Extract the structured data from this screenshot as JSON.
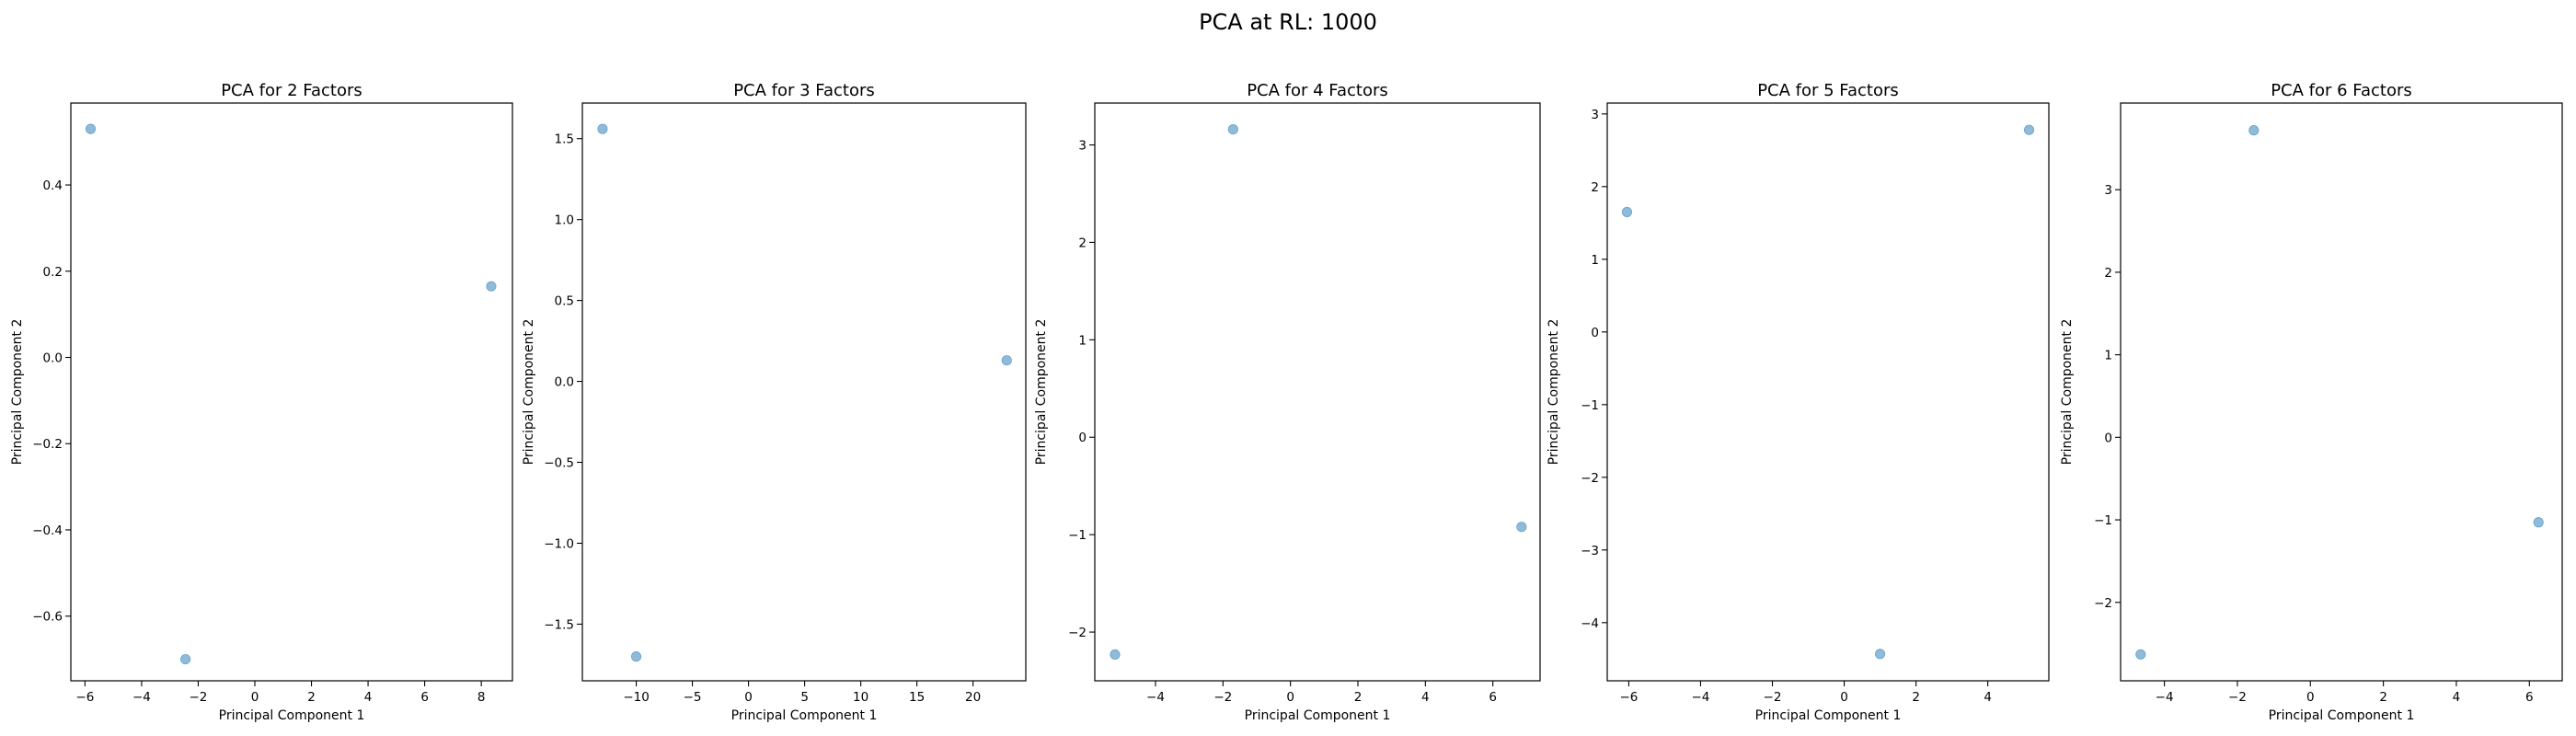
{
  "figure": {
    "title": "PCA at RL: 1000"
  },
  "colors": {
    "point_fill": "#1f77b4",
    "point_opacity": 0.5
  },
  "chart_data": [
    {
      "type": "scatter",
      "title": "PCA for 2 Factors",
      "xlabel": "Principal Component 1",
      "ylabel": "Principal Component 2",
      "xlim": [
        -6.5,
        9.1
      ],
      "ylim": [
        -0.75,
        0.59
      ],
      "xticks": [
        -6,
        -4,
        -2,
        0,
        2,
        4,
        6,
        8
      ],
      "yticks": [
        -0.6,
        -0.4,
        -0.2,
        0.0,
        0.2,
        0.4
      ],
      "ytick_labels": [
        "−0.6",
        "−0.4",
        "−0.2",
        "0.0",
        "0.2",
        "0.4"
      ],
      "xtick_labels": [
        "−6",
        "−4",
        "−2",
        "0",
        "2",
        "4",
        "6",
        "8"
      ],
      "points": [
        {
          "x": -5.8,
          "y": 0.53
        },
        {
          "x": -2.45,
          "y": -0.7
        },
        {
          "x": 8.35,
          "y": 0.165
        }
      ]
    },
    {
      "type": "scatter",
      "title": "PCA for 3 Factors",
      "xlabel": "Principal Component 1",
      "ylabel": "Principal Component 2",
      "xlim": [
        -14.8,
        24.7
      ],
      "ylim": [
        -1.85,
        1.72
      ],
      "xticks": [
        -10,
        -5,
        0,
        5,
        10,
        15,
        20
      ],
      "yticks": [
        -1.5,
        -1.0,
        -0.5,
        0.0,
        0.5,
        1.0,
        1.5
      ],
      "xtick_labels": [
        "−10",
        "−5",
        "0",
        "5",
        "10",
        "15",
        "20"
      ],
      "ytick_labels": [
        "−1.5",
        "−1.0",
        "−0.5",
        "0.0",
        "0.5",
        "1.0",
        "1.5"
      ],
      "points": [
        {
          "x": -13.0,
          "y": 1.56
        },
        {
          "x": -10.0,
          "y": -1.7
        },
        {
          "x": 23.0,
          "y": 0.13
        }
      ]
    },
    {
      "type": "scatter",
      "title": "PCA for 4 Factors",
      "xlabel": "Principal Component 1",
      "ylabel": "Principal Component 2",
      "xlim": [
        -5.8,
        7.4
      ],
      "ylim": [
        -2.5,
        3.43
      ],
      "xticks": [
        -4,
        -2,
        0,
        2,
        4,
        6
      ],
      "yticks": [
        -2,
        -1,
        0,
        1,
        2,
        3
      ],
      "xtick_labels": [
        "−4",
        "−2",
        "0",
        "2",
        "4",
        "6"
      ],
      "ytick_labels": [
        "−2",
        "−1",
        "0",
        "1",
        "2",
        "3"
      ],
      "points": [
        {
          "x": -5.2,
          "y": -2.23
        },
        {
          "x": -1.7,
          "y": 3.16
        },
        {
          "x": 6.85,
          "y": -0.92
        }
      ]
    },
    {
      "type": "scatter",
      "title": "PCA for 5 Factors",
      "xlabel": "Principal Component 1",
      "ylabel": "Principal Component 2",
      "xlim": [
        -6.6,
        5.7
      ],
      "ylim": [
        -4.8,
        3.15
      ],
      "xticks": [
        -6,
        -4,
        -2,
        0,
        2,
        4
      ],
      "yticks": [
        -4,
        -3,
        -2,
        -1,
        0,
        1,
        2,
        3
      ],
      "xtick_labels": [
        "−6",
        "−4",
        "−2",
        "0",
        "2",
        "4"
      ],
      "ytick_labels": [
        "−4",
        "−3",
        "−2",
        "−1",
        "0",
        "1",
        "2",
        "3"
      ],
      "points": [
        {
          "x": -6.05,
          "y": 1.65
        },
        {
          "x": 1.0,
          "y": -4.43
        },
        {
          "x": 5.15,
          "y": 2.78
        }
      ]
    },
    {
      "type": "scatter",
      "title": "PCA for 6 Factors",
      "xlabel": "Principal Component 1",
      "ylabel": "Principal Component 2",
      "xlim": [
        -5.2,
        6.9
      ],
      "ylim": [
        -2.95,
        4.05
      ],
      "xticks": [
        -4,
        -2,
        0,
        2,
        4,
        6
      ],
      "yticks": [
        -2,
        -1,
        0,
        1,
        2,
        3
      ],
      "xtick_labels": [
        "−4",
        "−2",
        "0",
        "2",
        "4",
        "6"
      ],
      "ytick_labels": [
        "−2",
        "−1",
        "0",
        "1",
        "2",
        "3"
      ],
      "points": [
        {
          "x": -4.65,
          "y": -2.63
        },
        {
          "x": -1.55,
          "y": 3.72
        },
        {
          "x": 6.25,
          "y": -1.03
        }
      ]
    }
  ]
}
